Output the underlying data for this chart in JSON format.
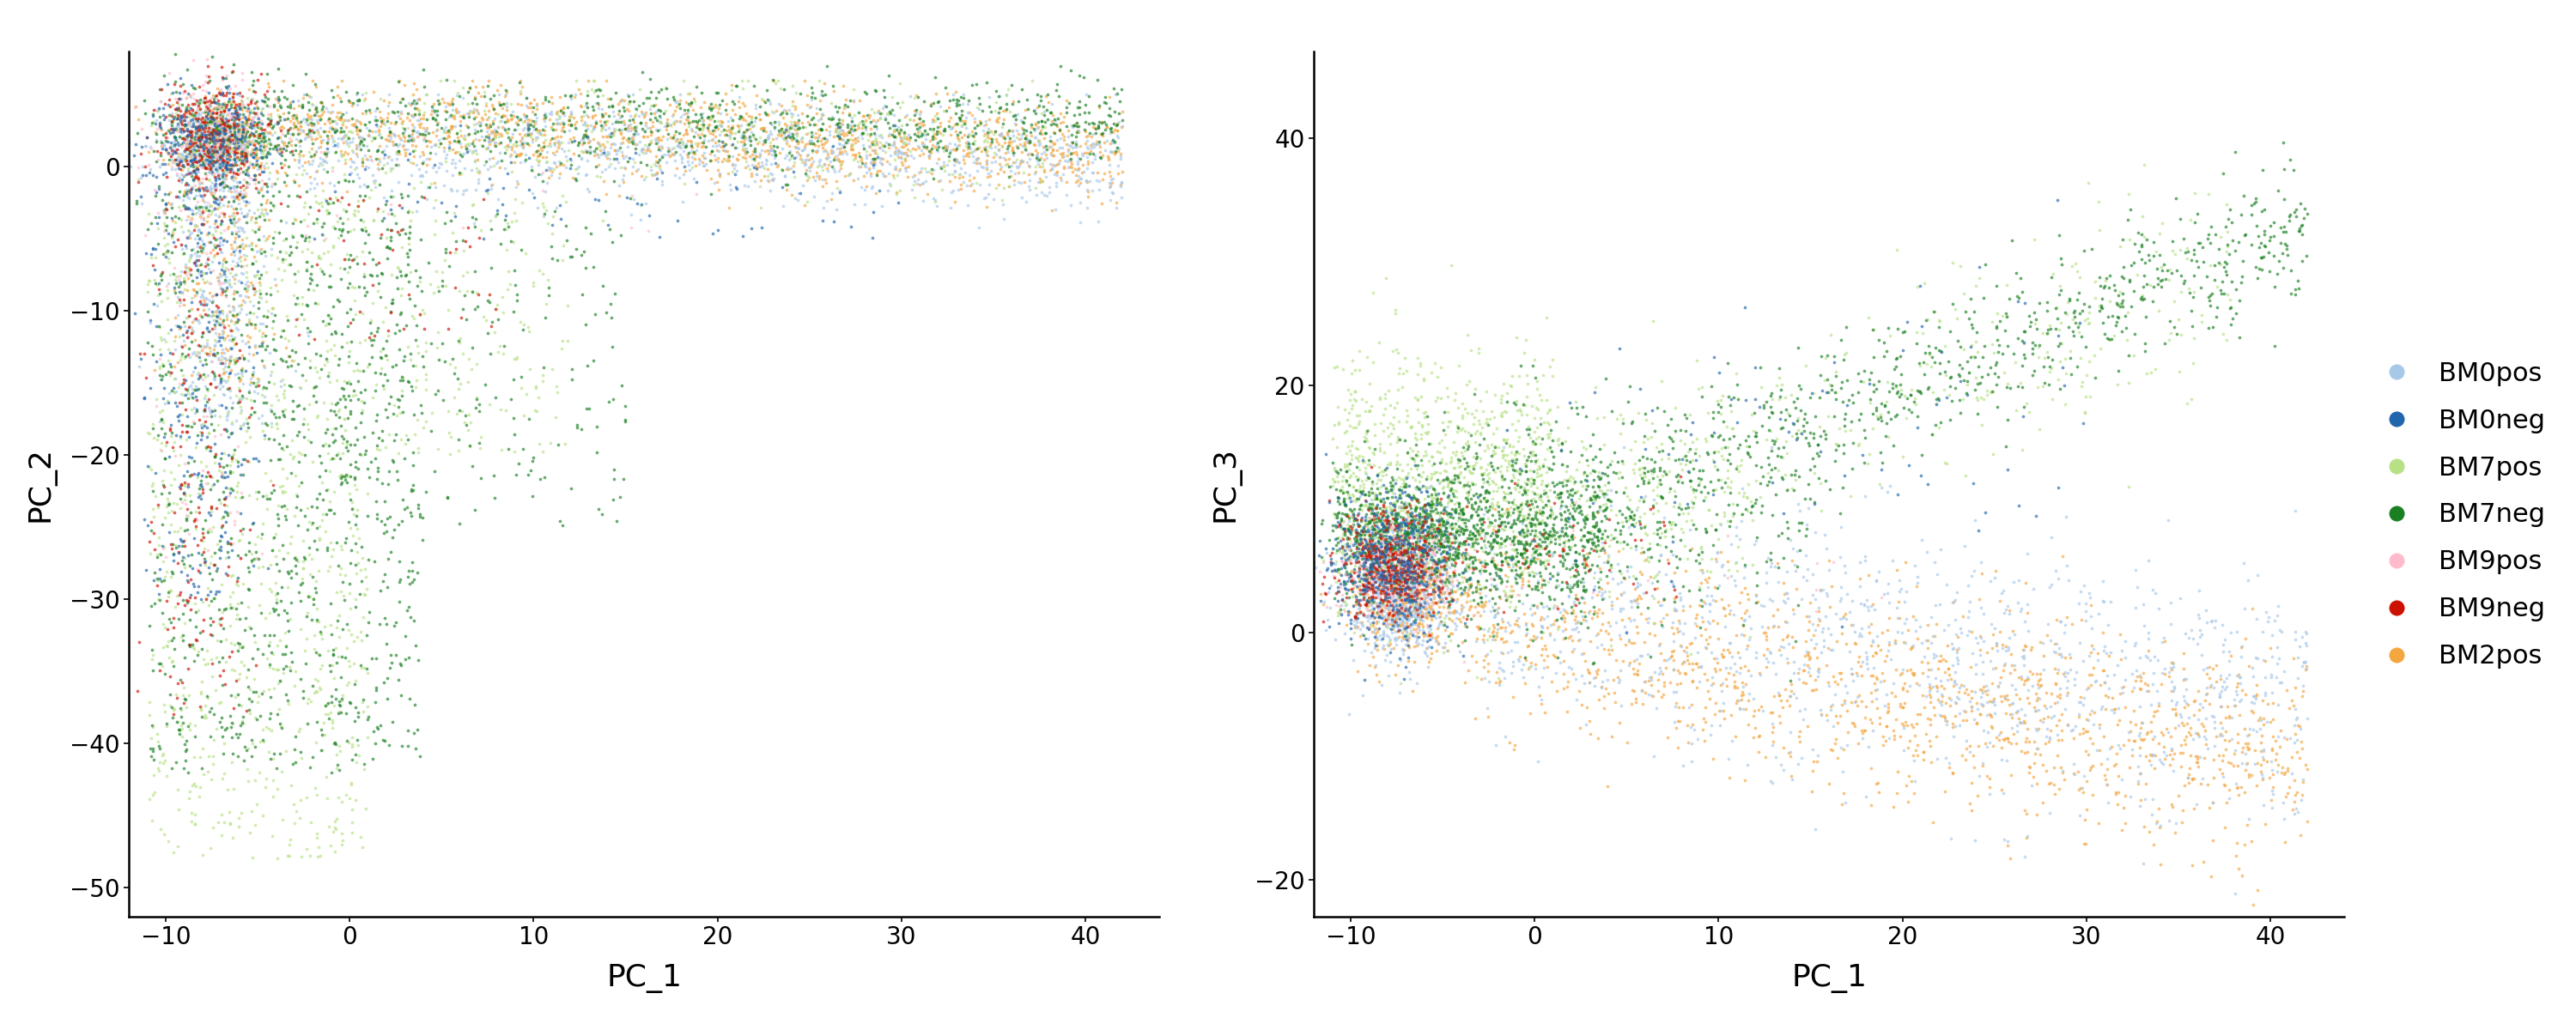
{
  "groups": [
    "BM0pos",
    "BM0neg",
    "BM7pos",
    "BM7neg",
    "BM9pos",
    "BM9neg",
    "BM2pos"
  ],
  "colors": {
    "BM0pos": "#A8C8E8",
    "BM0neg": "#2166AC",
    "BM7pos": "#B8E186",
    "BM7neg": "#1A8022",
    "BM9pos": "#FFBBCC",
    "BM9neg": "#CC1100",
    "BM2pos": "#F4A641"
  },
  "plot1": {
    "xlabel": "PC_1",
    "ylabel": "PC_2",
    "xlim": [
      -12,
      44
    ],
    "ylim": [
      -52,
      8
    ],
    "xticks": [
      -10,
      0,
      10,
      20,
      30,
      40
    ],
    "yticks": [
      -50,
      -40,
      -30,
      -20,
      -10,
      0
    ]
  },
  "plot2": {
    "xlabel": "PC_1",
    "ylabel": "PC_3",
    "xlim": [
      -12,
      44
    ],
    "ylim": [
      -23,
      47
    ],
    "xticks": [
      -10,
      0,
      10,
      20,
      30,
      40
    ],
    "yticks": [
      -20,
      0,
      20,
      40
    ]
  },
  "point_size": 7,
  "alpha": 0.65,
  "background_color": "#FFFFFF",
  "font_size": 26,
  "legend_fontsize": 22,
  "tick_fontsize": 20
}
